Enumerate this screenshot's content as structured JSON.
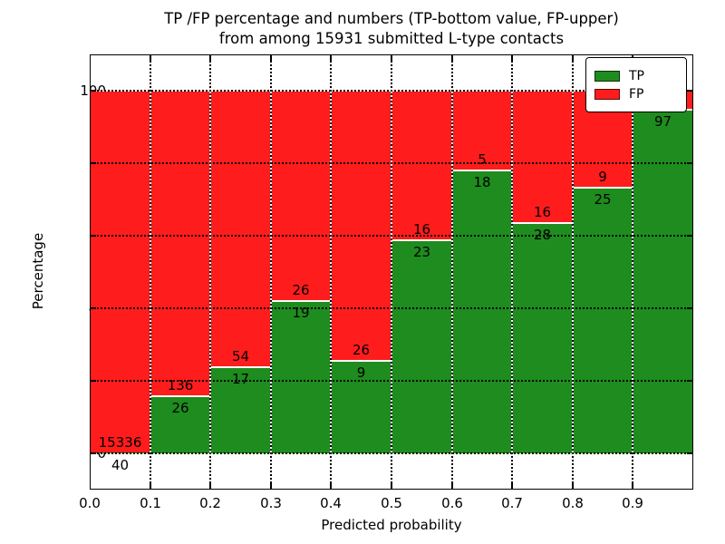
{
  "figure": {
    "title_line1": "TP /FP percentage and numbers (TP-bottom value, FP-upper)",
    "title_line2": "from among 15931 submitted L-type contacts"
  },
  "colors": {
    "tp_green": "#1e8c1e",
    "fp_red": "#ff1c1c",
    "grid": "#000000",
    "background": "#ffffff"
  },
  "chart_data": {
    "type": "bar",
    "stacked": true,
    "title": "TP /FP percentage and numbers (TP-bottom value, FP-upper) from among 15931 submitted L-type contacts",
    "xlabel": "Predicted probability",
    "ylabel": "Percentage",
    "xlim": [
      0.0,
      1.0
    ],
    "ylim": [
      -10,
      110
    ],
    "x_ticks": [
      "0.0",
      "0.1",
      "0.2",
      "0.3",
      "0.4",
      "0.5",
      "0.6",
      "0.7",
      "0.8",
      "0.9"
    ],
    "y_ticks": [
      0,
      20,
      40,
      60,
      80,
      100
    ],
    "grid": "dotted-black-both-axes",
    "legend": {
      "position": "upper right",
      "entries": [
        {
          "label": "TP",
          "color": "#1e8c1e"
        },
        {
          "label": "FP",
          "color": "#ff1c1c"
        }
      ]
    },
    "bin_width": 0.1,
    "note": "Each bar stacks to 100%; green TP portion bottom, red FP portion top. Labels show raw counts: FP count above boundary, TP count below boundary. FP label of last bar hidden behind legend.",
    "bars": [
      {
        "range": [
          0.0,
          0.1
        ],
        "tp": 40,
        "fp": 15336,
        "tp_pct": 0.26,
        "fp_label": "15336",
        "tp_label": "40"
      },
      {
        "range": [
          0.1,
          0.2
        ],
        "tp": 26,
        "fp": 136,
        "tp_pct": 16.05,
        "fp_label": "136",
        "tp_label": "26"
      },
      {
        "range": [
          0.2,
          0.3
        ],
        "tp": 17,
        "fp": 54,
        "tp_pct": 23.94,
        "fp_label": "54",
        "tp_label": "17"
      },
      {
        "range": [
          0.3,
          0.4
        ],
        "tp": 19,
        "fp": 26,
        "tp_pct": 42.22,
        "fp_label": "26",
        "tp_label": "19"
      },
      {
        "range": [
          0.4,
          0.5
        ],
        "tp": 9,
        "fp": 26,
        "tp_pct": 25.71,
        "fp_label": "26",
        "tp_label": "9"
      },
      {
        "range": [
          0.5,
          0.6
        ],
        "tp": 23,
        "fp": 16,
        "tp_pct": 58.97,
        "fp_label": "16",
        "tp_label": "23"
      },
      {
        "range": [
          0.6,
          0.7
        ],
        "tp": 18,
        "fp": 5,
        "tp_pct": 78.26,
        "fp_label": "5",
        "tp_label": "18"
      },
      {
        "range": [
          0.7,
          0.8
        ],
        "tp": 28,
        "fp": 16,
        "tp_pct": 63.64,
        "fp_label": "16",
        "tp_label": "28"
      },
      {
        "range": [
          0.8,
          0.9
        ],
        "tp": 25,
        "fp": 9,
        "tp_pct": 73.53,
        "fp_label": "9",
        "tp_label": "25"
      },
      {
        "range": [
          0.9,
          1.0
        ],
        "tp": 97,
        "fp": null,
        "tp_pct": 95.1,
        "fp_label": null,
        "tp_label": "97"
      }
    ]
  }
}
